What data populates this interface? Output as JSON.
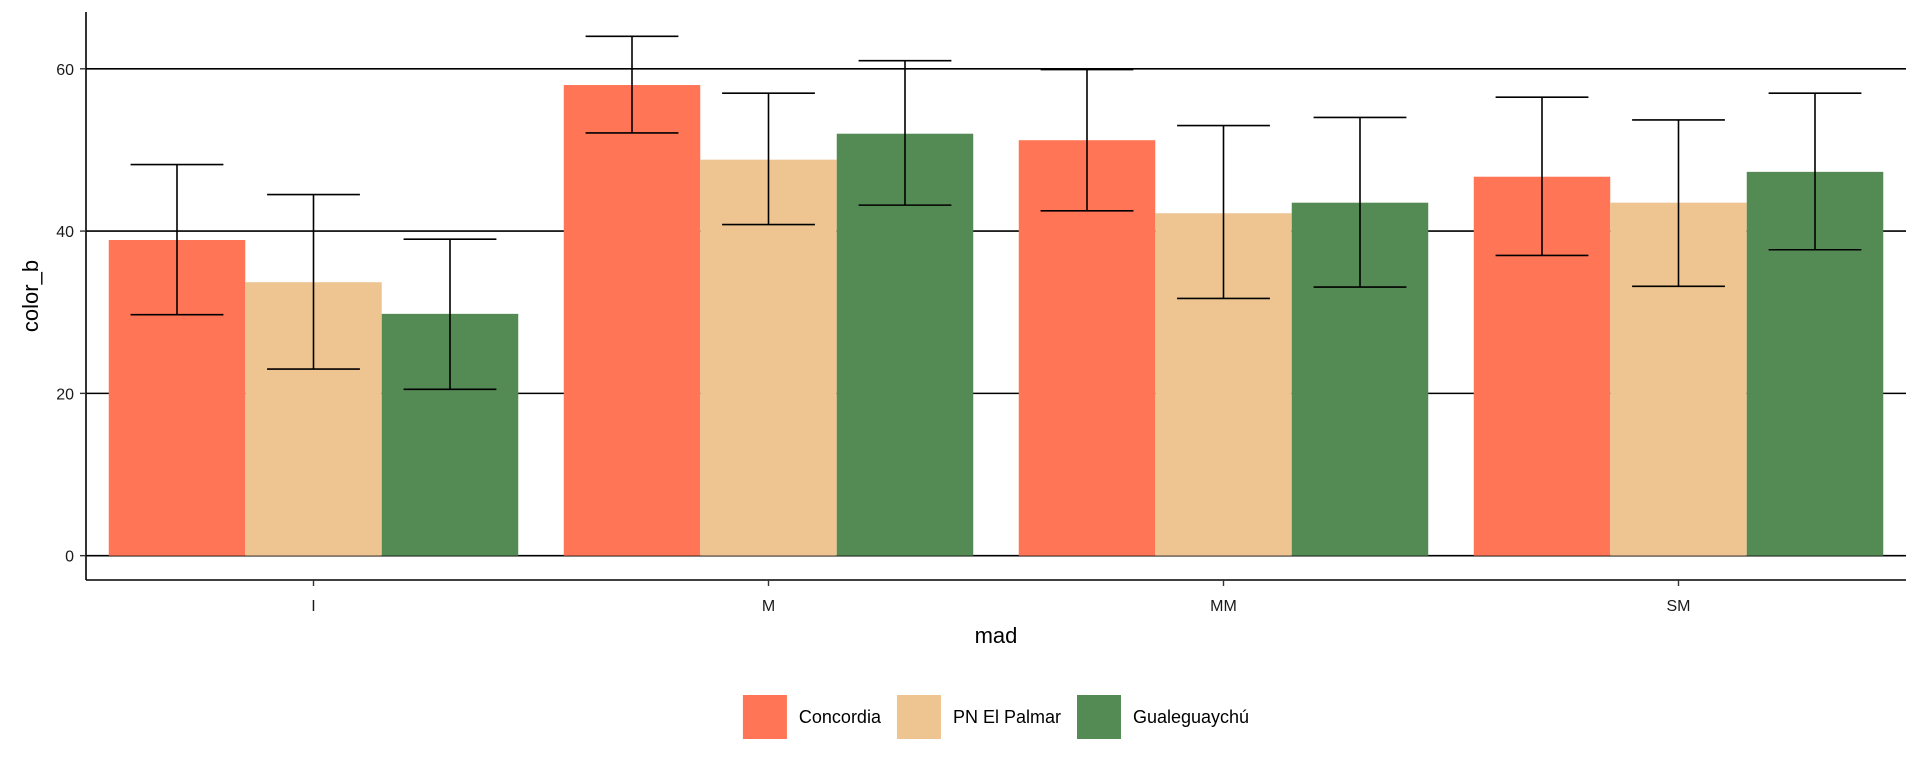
{
  "chart_data": {
    "type": "bar",
    "title": "",
    "xlabel": "mad",
    "ylabel": "color_b",
    "categories": [
      "I",
      "M",
      "MM",
      "SM"
    ],
    "ylim": [
      -3,
      67
    ],
    "yticks": [
      0,
      20,
      40,
      60
    ],
    "grid": "horizontal major lines",
    "legend": "bottom",
    "series": [
      {
        "name": "Concordia",
        "color": "#FF7556",
        "values": [
          38.9,
          58.0,
          51.2,
          46.7
        ],
        "err_low": [
          29.7,
          52.1,
          42.5,
          37.0
        ],
        "err_high": [
          48.2,
          64.0,
          59.9,
          56.5
        ]
      },
      {
        "name": "PN El Palmar",
        "color": "#EEC591",
        "values": [
          33.7,
          48.8,
          42.2,
          43.5
        ],
        "err_low": [
          23.0,
          40.8,
          31.7,
          33.2
        ],
        "err_high": [
          44.5,
          57.0,
          53.0,
          53.7
        ]
      },
      {
        "name": "Gualeguaychú",
        "color": "#548B54",
        "values": [
          29.8,
          52.0,
          43.5,
          47.3
        ],
        "err_low": [
          20.5,
          43.2,
          33.1,
          37.7
        ],
        "err_high": [
          39.0,
          61.0,
          54.0,
          57.0
        ]
      }
    ]
  }
}
